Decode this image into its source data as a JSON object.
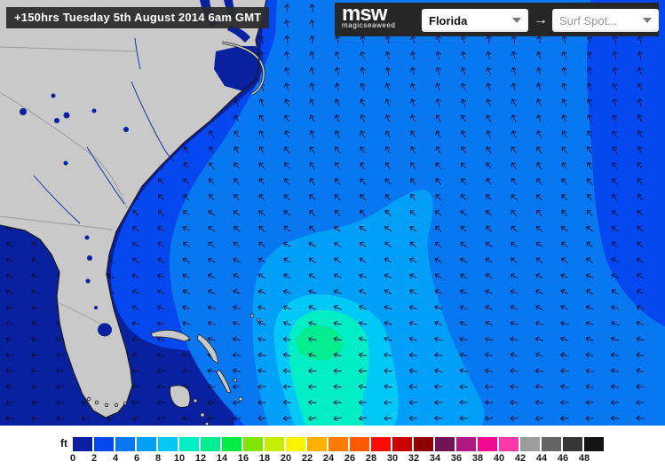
{
  "header": {
    "timestamp": "+150hrs Tuesday 5th August 2014 6am GMT",
    "logo_text": "msw",
    "logo_subtext": "magicseaweed",
    "region_value": "Florida",
    "spot_placeholder": "Surf Spot...",
    "arrow_icon": "→"
  },
  "legend": {
    "unit": "ft",
    "stops": [
      {
        "label": "0",
        "color": "#0920A0"
      },
      {
        "label": "2",
        "color": "#0548F0"
      },
      {
        "label": "4",
        "color": "#0878F0"
      },
      {
        "label": "6",
        "color": "#00A0F8"
      },
      {
        "label": "8",
        "color": "#00C9F8"
      },
      {
        "label": "10",
        "color": "#00EEC6"
      },
      {
        "label": "12",
        "color": "#00EE90"
      },
      {
        "label": "14",
        "color": "#00EE44"
      },
      {
        "label": "16",
        "color": "#80E600"
      },
      {
        "label": "18",
        "color": "#C6EC00"
      },
      {
        "label": "20",
        "color": "#FAF400"
      },
      {
        "label": "22",
        "color": "#FFB000"
      },
      {
        "label": "24",
        "color": "#FF7C00"
      },
      {
        "label": "26",
        "color": "#FF5A00"
      },
      {
        "label": "28",
        "color": "#FA0A00"
      },
      {
        "label": "30",
        "color": "#C80000"
      },
      {
        "label": "32",
        "color": "#900000"
      },
      {
        "label": "34",
        "color": "#701457"
      },
      {
        "label": "36",
        "color": "#B01880"
      },
      {
        "label": "38",
        "color": "#F00890"
      },
      {
        "label": "40",
        "color": "#FF38A8"
      },
      {
        "label": "42",
        "color": "#9C9C9C"
      },
      {
        "label": "44",
        "color": "#646464"
      },
      {
        "label": "46",
        "color": "#363636"
      },
      {
        "label": "48",
        "color": "#141414"
      }
    ]
  },
  "map": {
    "land_color": "#C9C9C9",
    "coast_color": "#1B1B1B",
    "border_line_color": "#9C9C9C",
    "arrow_color": "#0A1340",
    "band_levels_ft": [
      "0-2",
      "2-4",
      "4-6",
      "6-8",
      "8-10",
      "10-12",
      "12-14"
    ]
  }
}
